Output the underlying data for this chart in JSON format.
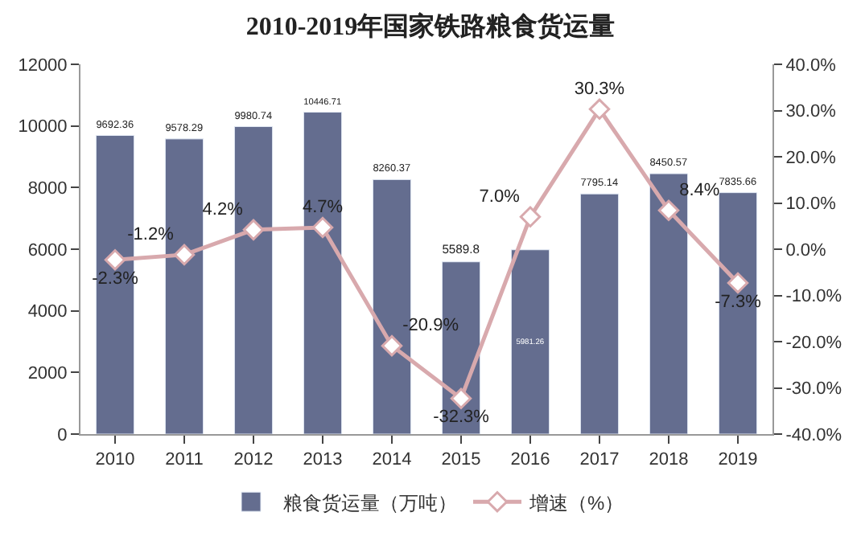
{
  "chart_data": {
    "type": "bar",
    "title": "2010-2019年国家铁路粮食货运量",
    "categories": [
      "2010",
      "2011",
      "2012",
      "2013",
      "2014",
      "2015",
      "2016",
      "2017",
      "2018",
      "2019"
    ],
    "series": [
      {
        "name": "粮食货运量（万吨）",
        "color": "#646d8f",
        "values": [
          9692.36,
          9578.29,
          9980.74,
          10446.71,
          8260.37,
          5589.8,
          5981.26,
          7795.14,
          8450.57,
          7835.66
        ],
        "value_labels": [
          "9692.36",
          "9578.29",
          "9980.74",
          "10446.71",
          "8260.37",
          "5589.8",
          "5981.26",
          "7795.14",
          "8450.57",
          "7835.66"
        ]
      },
      {
        "name": "增速（%）",
        "type": "line",
        "axis": "y2",
        "color": "#d8a9ad",
        "marker": "diamond",
        "values": [
          -2.3,
          -1.2,
          4.2,
          4.7,
          -20.9,
          -32.3,
          7.0,
          30.3,
          8.4,
          -7.3
        ],
        "value_labels": [
          "-2.3%",
          "-1.2%",
          "4.2%",
          "4.7%",
          "-20.9%",
          "-32.3%",
          "7.0%",
          "30.3%",
          "8.4%",
          "-7.3%"
        ]
      }
    ],
    "ylim": [
      0,
      12000
    ],
    "yticks": [
      0,
      2000,
      4000,
      6000,
      8000,
      10000,
      12000
    ],
    "y2lim": [
      -40,
      40
    ],
    "y2ticks": [
      {
        "value": -40,
        "label": "-40.0%"
      },
      {
        "value": -30,
        "label": "-30.0%"
      },
      {
        "value": -20,
        "label": "-20.0%"
      },
      {
        "value": -10,
        "label": "-10.0%"
      },
      {
        "value": 0,
        "label": "0.0%"
      },
      {
        "value": 10,
        "label": "10.0%"
      },
      {
        "value": 20,
        "label": "20.0%"
      },
      {
        "value": 30,
        "label": "30.0%"
      },
      {
        "value": 40,
        "label": "40.0%"
      }
    ],
    "legend": "bottom"
  }
}
